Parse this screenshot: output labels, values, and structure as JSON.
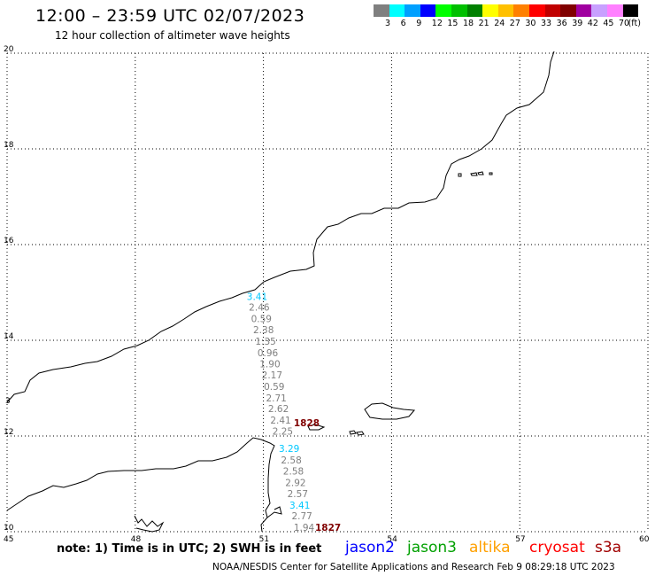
{
  "header": {
    "title": "12:00 – 23:59 UTC 02/07/2023",
    "subtitle": "12 hour collection of altimeter wave heights"
  },
  "colorbar": {
    "colors": [
      "#7f7f7f",
      "#00ffff",
      "#00a0ff",
      "#0000ff",
      "#00ff00",
      "#00c000",
      "#008000",
      "#ffff00",
      "#ffc000",
      "#ff8000",
      "#ff0000",
      "#c00000",
      "#800000",
      "#a000a0",
      "#c8a0ff",
      "#ff80ff",
      "#000000"
    ],
    "labels": [
      "3",
      "6",
      "9",
      "12",
      "15",
      "18",
      "21",
      "24",
      "27",
      "30",
      "33",
      "36",
      "39",
      "42",
      "45",
      "70",
      "(ft)"
    ]
  },
  "map": {
    "lat_labels": [
      {
        "value": 20,
        "text": "20"
      },
      {
        "value": 18,
        "text": "18"
      },
      {
        "value": 16,
        "text": "16"
      },
      {
        "value": 14,
        "text": "14"
      },
      {
        "value": 12,
        "text": "12"
      },
      {
        "value": 10,
        "text": "10"
      }
    ],
    "lon_labels": [
      {
        "value": 45,
        "text": "45"
      },
      {
        "value": 48,
        "text": "48"
      },
      {
        "value": 51,
        "text": "51"
      },
      {
        "value": 54,
        "text": "54"
      },
      {
        "value": 57,
        "text": "57"
      },
      {
        "value": 60,
        "text": "60"
      }
    ],
    "extra_label": "3",
    "observations": [
      {
        "text": "3.41",
        "color": "#00c8ff",
        "lon": 50.9,
        "lat": 14.92
      },
      {
        "text": "2.46",
        "color": "#7f7f7f",
        "lon": 50.95,
        "lat": 14.69
      },
      {
        "text": "0.59",
        "color": "#7f7f7f",
        "lon": 51.0,
        "lat": 14.45
      },
      {
        "text": "2.38",
        "color": "#7f7f7f",
        "lon": 51.05,
        "lat": 14.22
      },
      {
        "text": "1.35",
        "color": "#7f7f7f",
        "lon": 51.1,
        "lat": 13.98
      },
      {
        "text": "0.96",
        "color": "#7f7f7f",
        "lon": 51.15,
        "lat": 13.74
      },
      {
        "text": "1.90",
        "color": "#7f7f7f",
        "lon": 51.2,
        "lat": 13.51
      },
      {
        "text": "2.17",
        "color": "#7f7f7f",
        "lon": 51.25,
        "lat": 13.28
      },
      {
        "text": "0.59",
        "color": "#7f7f7f",
        "lon": 51.3,
        "lat": 13.04
      },
      {
        "text": "2.71",
        "color": "#7f7f7f",
        "lon": 51.35,
        "lat": 12.8
      },
      {
        "text": "2.62",
        "color": "#7f7f7f",
        "lon": 51.4,
        "lat": 12.57
      },
      {
        "text": "2.41",
        "color": "#7f7f7f",
        "lon": 51.45,
        "lat": 12.33
      },
      {
        "text": "2.25",
        "color": "#7f7f7f",
        "lon": 51.5,
        "lat": 12.1
      },
      {
        "text": "3.29",
        "color": "#00c8ff",
        "lon": 51.65,
        "lat": 11.74
      },
      {
        "text": "2.58",
        "color": "#7f7f7f",
        "lon": 51.7,
        "lat": 11.5
      },
      {
        "text": "2.58",
        "color": "#7f7f7f",
        "lon": 51.75,
        "lat": 11.27
      },
      {
        "text": "2.92",
        "color": "#7f7f7f",
        "lon": 51.8,
        "lat": 11.03
      },
      {
        "text": "2.57",
        "color": "#7f7f7f",
        "lon": 51.85,
        "lat": 10.8
      },
      {
        "text": "3.41",
        "color": "#00c8ff",
        "lon": 51.9,
        "lat": 10.56
      },
      {
        "text": "2.77",
        "color": "#7f7f7f",
        "lon": 51.95,
        "lat": 10.33
      },
      {
        "text": "1.94",
        "color": "#7f7f7f",
        "lon": 52.0,
        "lat": 10.09
      }
    ],
    "time_labels": [
      {
        "text": "1828",
        "color": "#800000",
        "lon": 52.0,
        "lat": 12.28
      },
      {
        "text": "1827",
        "color": "#800000",
        "lon": 52.5,
        "lat": 10.09
      }
    ]
  },
  "satellites": [
    {
      "name": "jason2",
      "color": "#0000ff"
    },
    {
      "name": "jason3",
      "color": "#00a000"
    },
    {
      "name": "altika",
      "color": "#ffa000"
    },
    {
      "name": "cryosat",
      "color": "#ff0000"
    },
    {
      "name": "s3a",
      "color": "#a00000"
    }
  ],
  "footer": {
    "note": "note:  1) Time is in UTC;  2) SWH is in feet",
    "credit": "NOAA/NESDIS Center for Satellite Applications and Research    Feb  9 08:29:18 UTC 2023"
  }
}
